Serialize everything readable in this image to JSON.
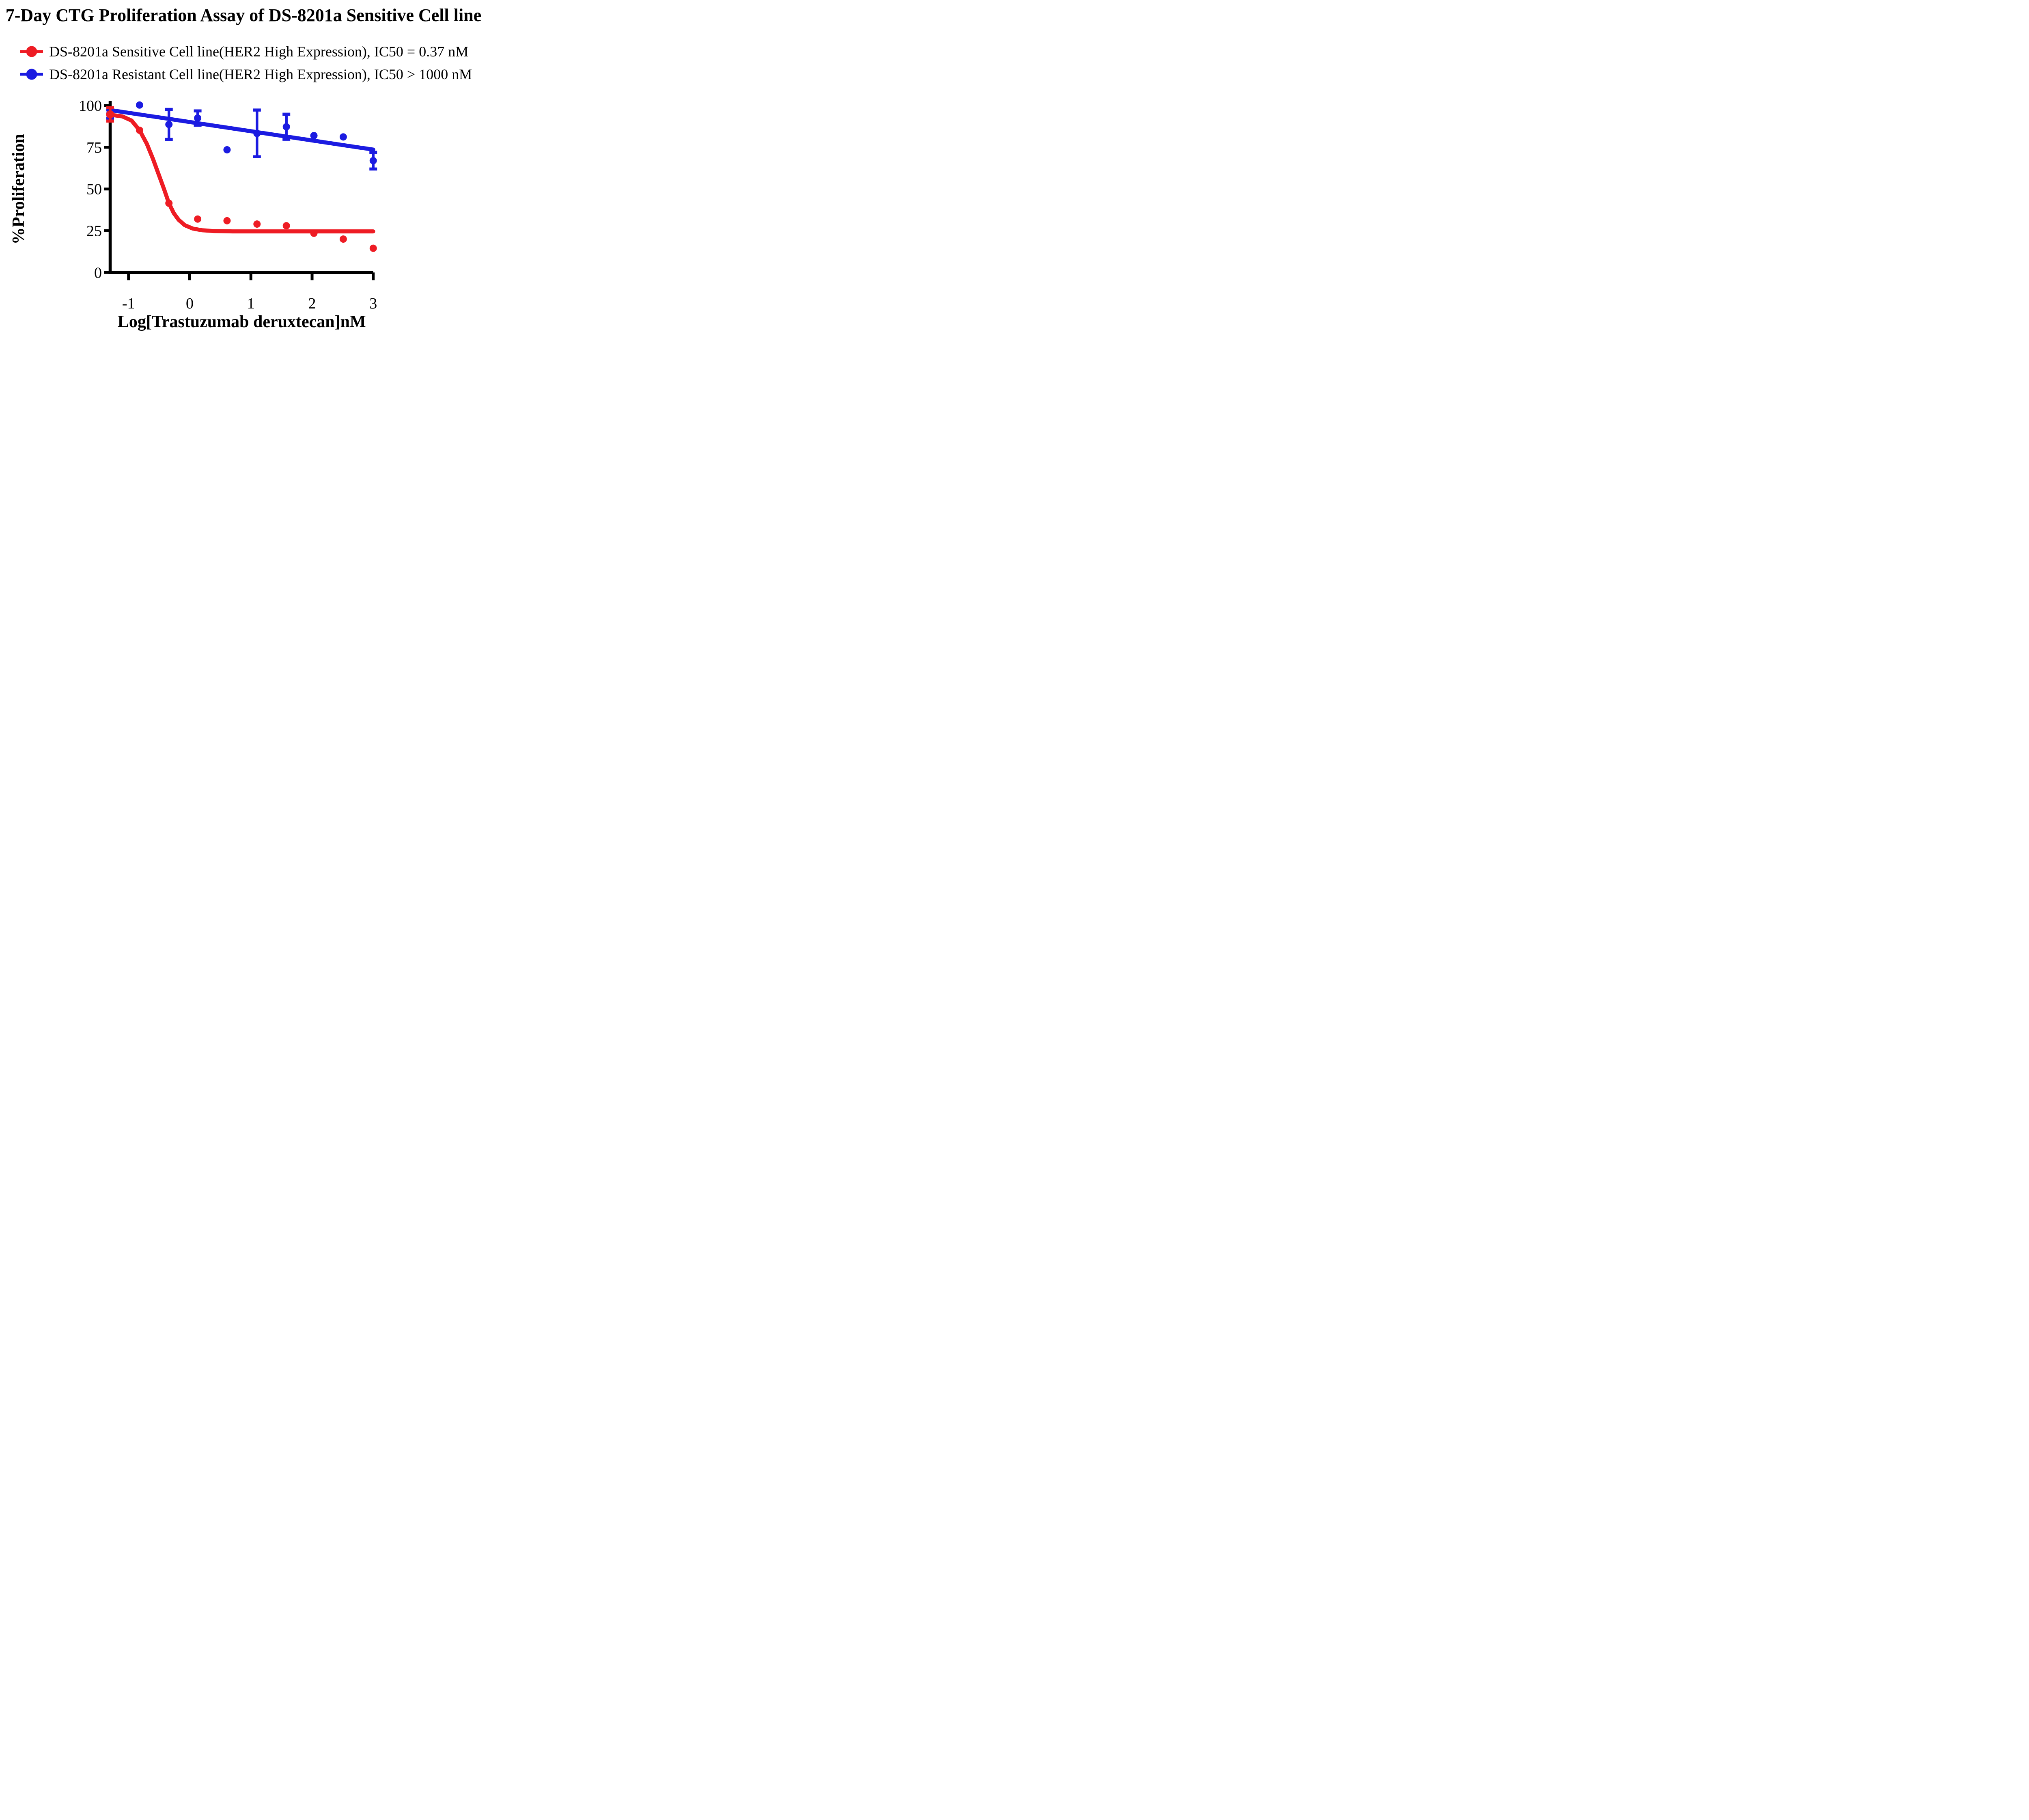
{
  "chart_data": {
    "type": "scatter-line",
    "title": "7-Day CTG Proliferation Assay of DS-8201a Sensitive Cell line",
    "xlabel": "Log[Trastuzumab deruxtecan]nM",
    "ylabel": "%Proliferation",
    "xlim": [
      -1.3,
      3.0
    ],
    "ylim": [
      0,
      103
    ],
    "x_ticks": [
      -1,
      0,
      1,
      2,
      3
    ],
    "y_ticks": [
      0,
      25,
      50,
      75,
      100
    ],
    "grid": false,
    "legend_position": "top-left",
    "log_x_values": [
      -1.3,
      -0.82,
      -0.34,
      0.13,
      0.61,
      1.1,
      1.58,
      2.03,
      2.51,
      3.0
    ],
    "series": [
      {
        "name": "DS-8201a Sensitive Cell line(HER2 High Expression)",
        "ic50": "IC50 = 0.37 nM",
        "color": "#ee1c24",
        "values": [
          94.7,
          85.2,
          41.5,
          32.0,
          31.0,
          29.0,
          28.0,
          23.5,
          20.0,
          14.5
        ],
        "errors": [
          4.0,
          null,
          null,
          null,
          null,
          null,
          null,
          null,
          null,
          null
        ],
        "fit_curve": [
          [
            -1.3,
            94.5
          ],
          [
            -1.1,
            93.5
          ],
          [
            -0.95,
            91.0
          ],
          [
            -0.82,
            85.2
          ],
          [
            -0.7,
            77.0
          ],
          [
            -0.6,
            68.0
          ],
          [
            -0.5,
            58.0
          ],
          [
            -0.42,
            50.0
          ],
          [
            -0.34,
            41.5
          ],
          [
            -0.26,
            35.5
          ],
          [
            -0.18,
            31.5
          ],
          [
            -0.08,
            28.3
          ],
          [
            0.05,
            26.3
          ],
          [
            0.2,
            25.3
          ],
          [
            0.4,
            24.8
          ],
          [
            0.7,
            24.6
          ],
          [
            1.5,
            24.6
          ],
          [
            3.0,
            24.6
          ]
        ]
      },
      {
        "name": "DS-8201a Resistant Cell line(HER2 High Expression)",
        "ic50": "IC50 > 1000 nM",
        "color": "#1b1be1",
        "values": [
          94.9,
          100.3,
          88.7,
          92.5,
          73.5,
          83.3,
          87.3,
          82.0,
          81.2,
          67.0
        ],
        "errors": [
          2.5,
          null,
          9.0,
          4.3,
          null,
          14.0,
          7.5,
          null,
          null,
          5.0
        ],
        "fit_curve": [
          [
            -1.3,
            97.3
          ],
          [
            3.0,
            73.6
          ]
        ]
      }
    ]
  },
  "legend": {
    "items": [
      {
        "label": "DS-8201a Sensitive Cell line(HER2 High Expression), IC50 = 0.37 nM"
      },
      {
        "label": "DS-8201a Resistant Cell line(HER2 High Expression), IC50 > 1000 nM"
      }
    ]
  }
}
